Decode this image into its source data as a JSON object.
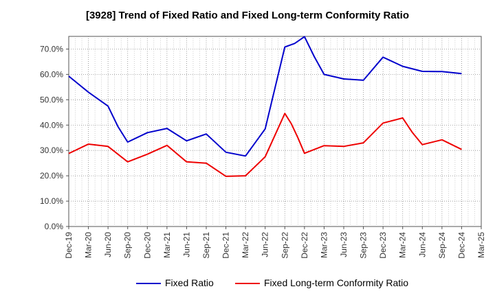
{
  "title": "[3928]  Trend of Fixed Ratio and Fixed Long-term Conformity Ratio",
  "chart_data": {
    "type": "line",
    "x": [
      "Dec-19",
      "Mar-20",
      "Jun-20",
      "Sep-20",
      "Dec-20",
      "Mar-21",
      "Jun-21",
      "Sep-21",
      "Dec-21",
      "Mar-22",
      "Jun-22",
      "Sep-22",
      "Dec-22",
      "Mar-23",
      "Jun-23",
      "Sep-23",
      "Dec-23",
      "Mar-24",
      "Jun-24",
      "Sep-24",
      "Dec-24",
      "Mar-25"
    ],
    "ylim": [
      0,
      75
    ],
    "yticks": [
      "0.0%",
      "10.0%",
      "20.0%",
      "30.0%",
      "40.0%",
      "50.0%",
      "60.0%",
      "70.0%"
    ],
    "grid": true,
    "legend_position": "bottom",
    "series": [
      {
        "name": "Fixed Ratio",
        "color": "#0000cc",
        "points": [
          [
            "Dec-19",
            59.3
          ],
          [
            "Mar-20",
            53.0
          ],
          [
            "Jun-20",
            47.5
          ],
          [
            "",
            39.5
          ],
          [
            "Sep-20",
            33.3
          ],
          [
            "Dec-20",
            37.0
          ],
          [
            "Mar-21",
            38.7
          ],
          [
            "Jun-21",
            33.8
          ],
          [
            "Sep-21",
            36.5
          ],
          [
            "Dec-21",
            29.3
          ],
          [
            "Mar-22",
            27.8
          ],
          [
            "Jun-22",
            38.5
          ],
          [
            "Sep-22",
            70.8
          ],
          [
            "",
            72.2
          ],
          [
            "Dec-22",
            74.9
          ],
          [
            "",
            67.0
          ],
          [
            "Mar-23",
            60.0
          ],
          [
            "Jun-23",
            58.2
          ],
          [
            "Sep-23",
            57.7
          ],
          [
            "Dec-23",
            66.8
          ],
          [
            "Mar-24",
            63.2
          ],
          [
            "Jun-24",
            61.2
          ],
          [
            "Sep-24",
            61.1
          ],
          [
            "Dec-24",
            60.3
          ]
        ]
      },
      {
        "name": "Fixed Long-term Conformity Ratio",
        "color": "#ee0000",
        "points": [
          [
            "Dec-19",
            28.8
          ],
          [
            "Mar-20",
            32.5
          ],
          [
            "Jun-20",
            31.6
          ],
          [
            "Sep-20",
            25.5
          ],
          [
            "Dec-20",
            28.5
          ],
          [
            "Mar-21",
            32.0
          ],
          [
            "Jun-21",
            25.5
          ],
          [
            "Sep-21",
            25.0
          ],
          [
            "Dec-21",
            19.8
          ],
          [
            "Mar-22",
            20.0
          ],
          [
            "Jun-22",
            27.5
          ],
          [
            "Sep-22",
            44.6
          ],
          [
            "",
            40.5
          ],
          [
            "",
            35.0
          ],
          [
            "Dec-22",
            28.9
          ],
          [
            "Mar-23",
            31.9
          ],
          [
            "Jun-23",
            31.6
          ],
          [
            "Sep-23",
            33.0
          ],
          [
            "Dec-23",
            40.8
          ],
          [
            "Mar-24",
            42.8
          ],
          [
            "",
            37.0
          ],
          [
            "Jun-24",
            32.3
          ],
          [
            "Sep-24",
            34.2
          ],
          [
            "Dec-24",
            30.4
          ]
        ]
      }
    ]
  }
}
